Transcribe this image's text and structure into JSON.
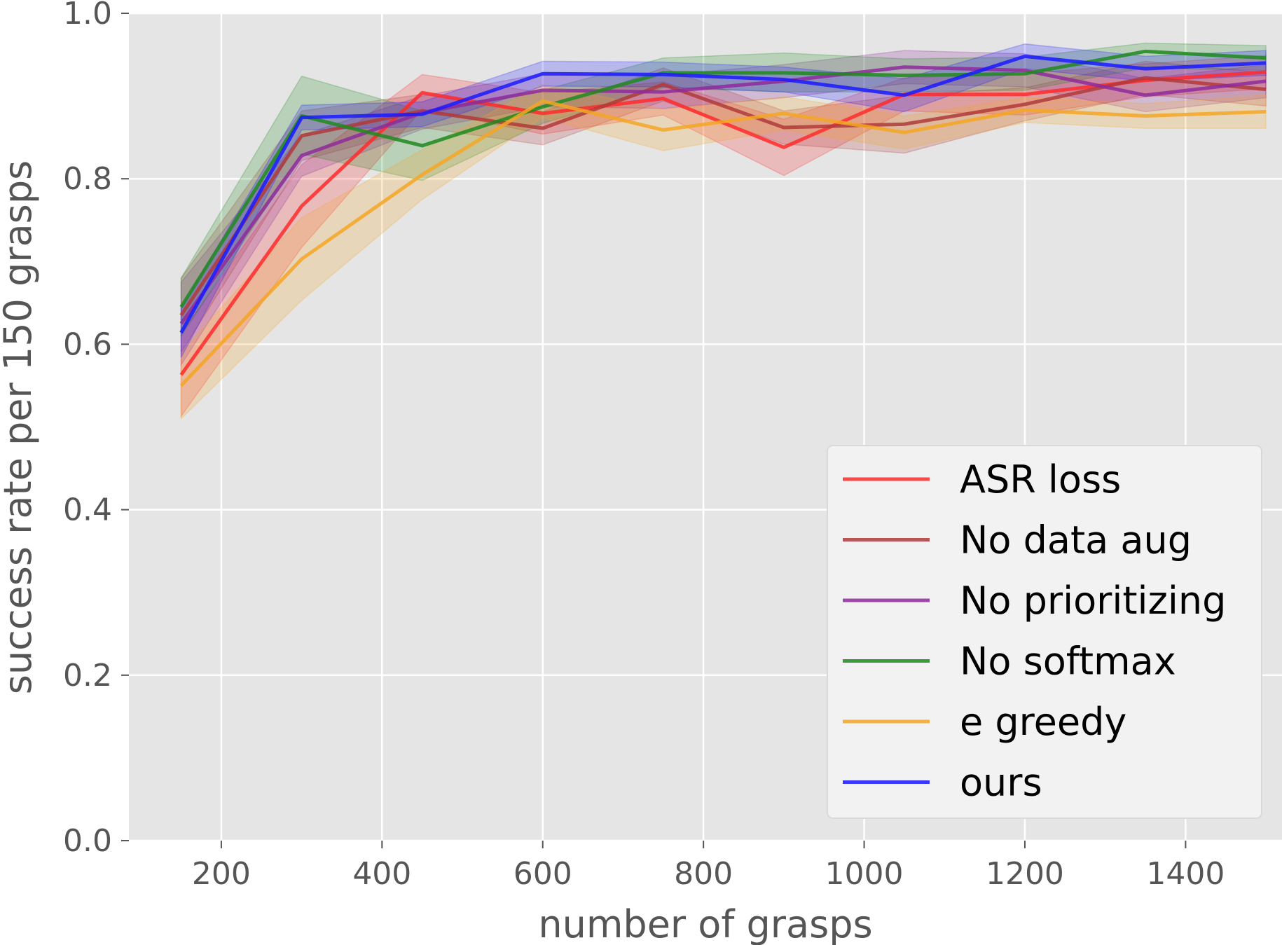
{
  "chart_data": {
    "type": "line",
    "title": "",
    "xlabel": "number of grasps",
    "ylabel": "success rate per 150 grasps",
    "xlim": [
      85,
      1520
    ],
    "ylim": [
      0.0,
      1.0
    ],
    "xticks": [
      200,
      400,
      600,
      800,
      1000,
      1200,
      1400
    ],
    "xtick_labels": [
      "200",
      "400",
      "600",
      "800",
      "1000",
      "1200",
      "1400"
    ],
    "yticks": [
      0.0,
      0.2,
      0.4,
      0.6,
      0.8,
      1.0
    ],
    "ytick_labels": [
      "0.0",
      "0.2",
      "0.4",
      "0.6",
      "0.8",
      "1.0"
    ],
    "grid": true,
    "legend_position": "lower-right",
    "x": [
      150,
      300,
      450,
      600,
      750,
      900,
      1050,
      1200,
      1350,
      1500
    ],
    "series": [
      {
        "name": "ASR loss",
        "color": "#ff2a2a",
        "values": [
          0.563,
          0.767,
          0.904,
          0.879,
          0.897,
          0.838,
          0.902,
          0.902,
          0.919,
          0.929
        ],
        "lower": [
          0.513,
          0.717,
          0.884,
          0.854,
          0.877,
          0.804,
          0.882,
          0.877,
          0.899,
          0.909
        ],
        "upper": [
          0.613,
          0.817,
          0.926,
          0.904,
          0.917,
          0.872,
          0.922,
          0.927,
          0.939,
          0.949
        ]
      },
      {
        "name": "No data aug",
        "color": "#b03a3a",
        "values": [
          0.635,
          0.852,
          0.882,
          0.861,
          0.914,
          0.862,
          0.866,
          0.89,
          0.922,
          0.908
        ],
        "lower": [
          0.59,
          0.822,
          0.862,
          0.841,
          0.894,
          0.842,
          0.831,
          0.87,
          0.902,
          0.888
        ],
        "upper": [
          0.68,
          0.882,
          0.902,
          0.881,
          0.934,
          0.882,
          0.901,
          0.91,
          0.942,
          0.928
        ]
      },
      {
        "name": "No prioritizing",
        "color": "#8e2a9c",
        "values": [
          0.625,
          0.828,
          0.88,
          0.907,
          0.905,
          0.918,
          0.935,
          0.931,
          0.901,
          0.918
        ],
        "lower": [
          0.575,
          0.803,
          0.86,
          0.887,
          0.885,
          0.898,
          0.915,
          0.911,
          0.881,
          0.898
        ],
        "upper": [
          0.675,
          0.853,
          0.9,
          0.927,
          0.925,
          0.938,
          0.955,
          0.951,
          0.921,
          0.938
        ]
      },
      {
        "name": "No softmax",
        "color": "#1f8a1f",
        "values": [
          0.645,
          0.876,
          0.84,
          0.887,
          0.928,
          0.928,
          0.925,
          0.927,
          0.954,
          0.946
        ],
        "lower": [
          0.61,
          0.83,
          0.798,
          0.867,
          0.91,
          0.905,
          0.905,
          0.907,
          0.934,
          0.931
        ],
        "upper": [
          0.68,
          0.924,
          0.882,
          0.907,
          0.946,
          0.952,
          0.945,
          0.947,
          0.964,
          0.961
        ]
      },
      {
        "name": "e greedy",
        "color": "#f5a623",
        "values": [
          0.55,
          0.703,
          0.805,
          0.894,
          0.859,
          0.879,
          0.856,
          0.883,
          0.876,
          0.881
        ],
        "lower": [
          0.51,
          0.653,
          0.775,
          0.874,
          0.834,
          0.859,
          0.836,
          0.868,
          0.861,
          0.861
        ],
        "upper": [
          0.59,
          0.753,
          0.835,
          0.914,
          0.884,
          0.899,
          0.876,
          0.898,
          0.891,
          0.901
        ]
      },
      {
        "name": "ours",
        "color": "#1a1aff",
        "values": [
          0.614,
          0.874,
          0.878,
          0.927,
          0.926,
          0.92,
          0.901,
          0.948,
          0.933,
          0.94
        ],
        "lower": [
          0.584,
          0.859,
          0.863,
          0.912,
          0.911,
          0.905,
          0.881,
          0.933,
          0.918,
          0.925
        ],
        "upper": [
          0.644,
          0.889,
          0.893,
          0.942,
          0.941,
          0.935,
          0.921,
          0.963,
          0.948,
          0.955
        ]
      }
    ]
  }
}
